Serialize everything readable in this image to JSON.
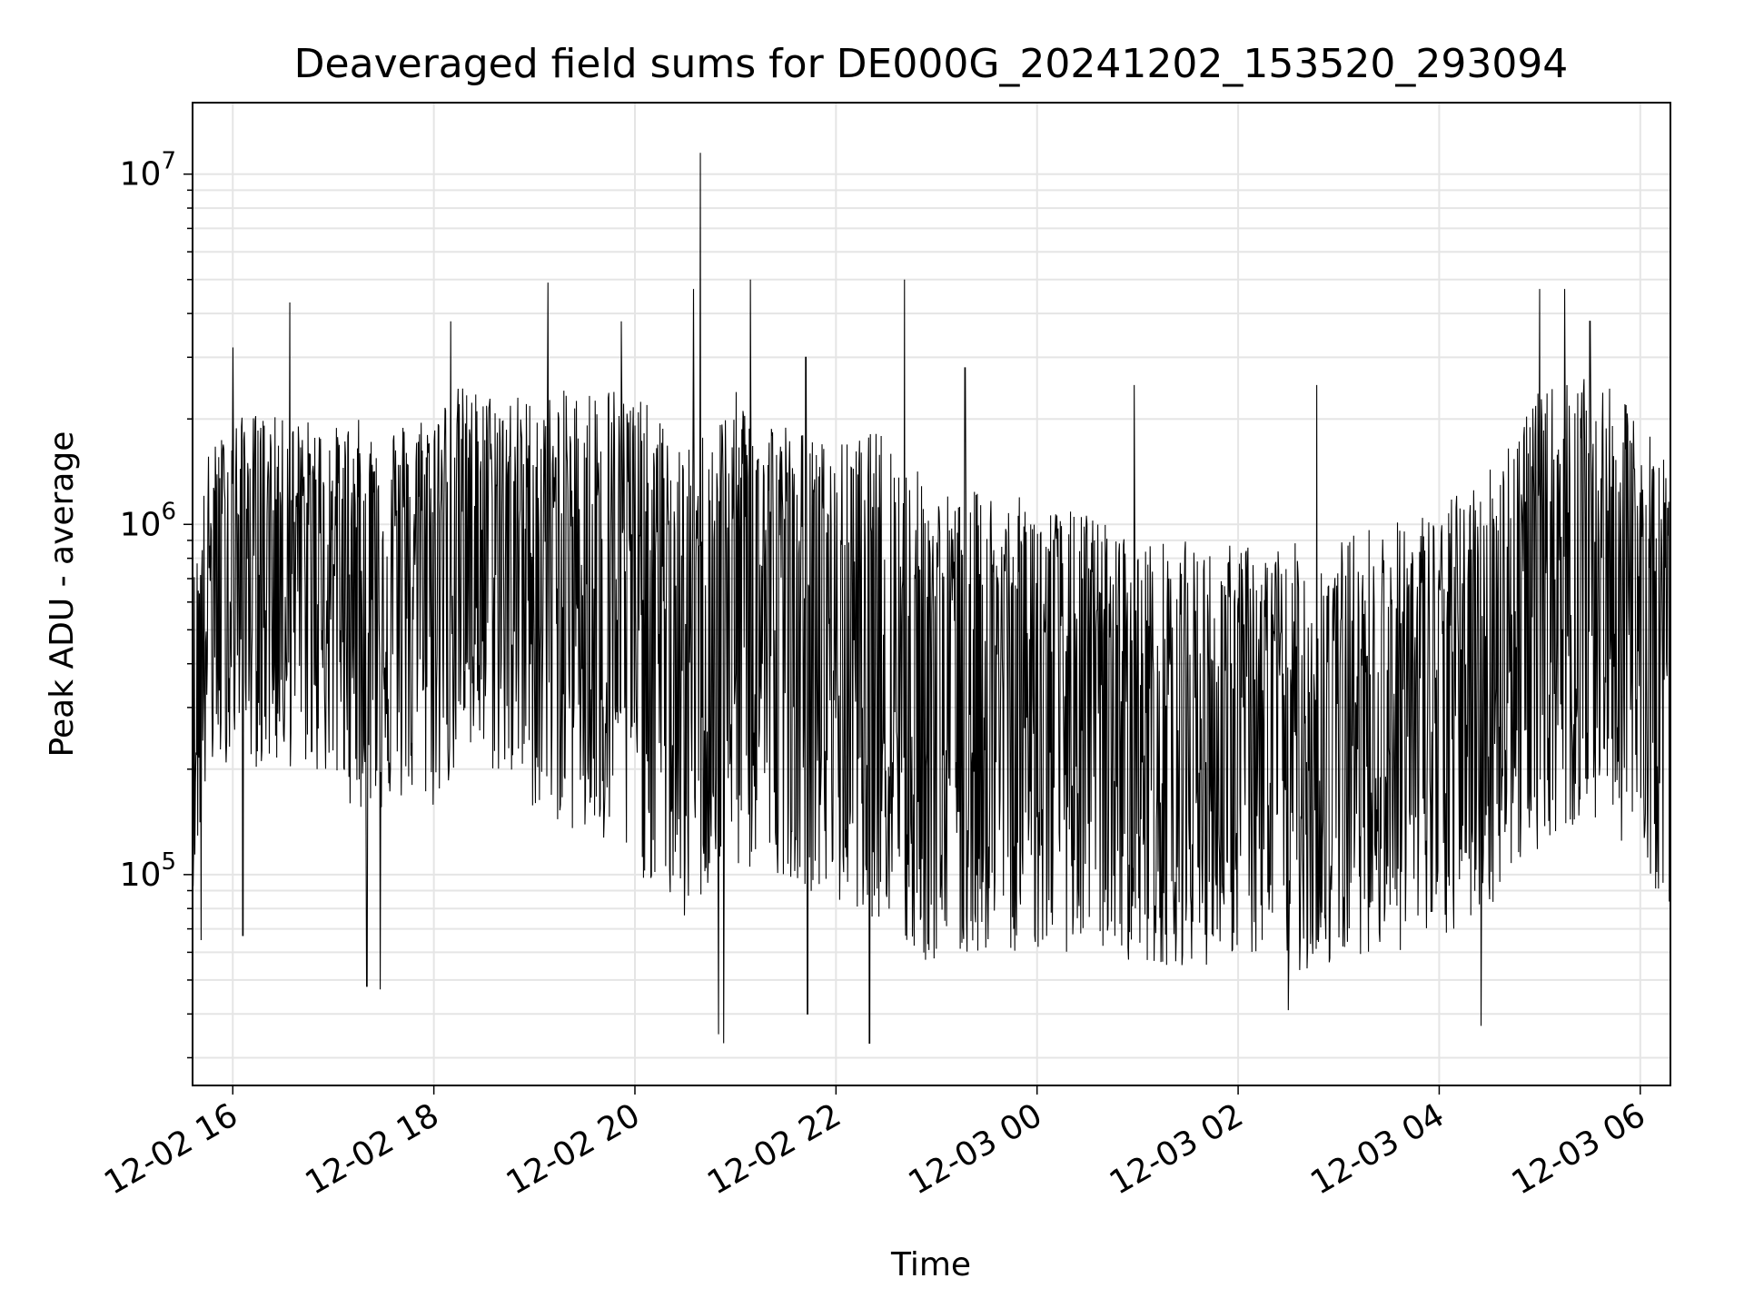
{
  "chart_data": {
    "type": "line",
    "title": "Deaveraged field sums for DE000G_20241202_153520_293094",
    "xlabel": "Time",
    "ylabel": "Peak ADU - average",
    "x_scale": "time",
    "y_scale": "log",
    "xlim": [
      "12-02 15:36",
      "12-03 06:18"
    ],
    "ylim": [
      25000,
      16000000
    ],
    "grid": true,
    "line_color": "#000000",
    "grid_color": "#e5e5e5",
    "x_ticks": [
      "12-02 16",
      "12-02 18",
      "12-02 20",
      "12-02 22",
      "12-03 00",
      "12-03 02",
      "12-03 04",
      "12-03 06"
    ],
    "y_ticks": [
      {
        "value": 100000,
        "base": "10",
        "exp": "5"
      },
      {
        "value": 1000000,
        "base": "10",
        "exp": "6"
      },
      {
        "value": 10000000,
        "base": "10",
        "exp": "7"
      }
    ],
    "series": [
      {
        "x": [
          "12-02 15:36",
          "12-02 15:45",
          "12-02 16:00",
          "12-02 16:15",
          "12-02 16:30",
          "12-02 16:45",
          "12-02 17:00",
          "12-02 17:15",
          "12-02 17:30",
          "12-02 17:45",
          "12-02 18:00",
          "12-02 18:15",
          "12-02 18:30",
          "12-02 18:45",
          "12-02 19:00",
          "12-02 19:15",
          "12-02 19:30",
          "12-02 19:45",
          "12-02 20:00",
          "12-02 20:15",
          "12-02 20:30",
          "12-02 20:45",
          "12-02 21:00",
          "12-02 21:15",
          "12-02 21:30",
          "12-02 21:45",
          "12-02 22:00",
          "12-02 22:15",
          "12-02 22:30",
          "12-02 22:45",
          "12-02 23:00",
          "12-02 23:15",
          "12-02 23:30",
          "12-02 23:45",
          "12-03 00:00",
          "12-03 00:15",
          "12-03 00:30",
          "12-03 00:45",
          "12-03 01:00",
          "12-03 01:15",
          "12-03 01:30",
          "12-03 01:45",
          "12-03 02:00",
          "12-03 02:15",
          "12-03 02:30",
          "12-03 02:45",
          "12-03 03:00",
          "12-03 03:15",
          "12-03 03:30",
          "12-03 03:45",
          "12-03 04:00",
          "12-03 04:15",
          "12-03 04:30",
          "12-03 04:45",
          "12-03 05:00",
          "12-03 05:15",
          "12-03 05:30",
          "12-03 05:45",
          "12-03 06:00",
          "12-03 06:18"
        ],
        "median": [
          250000,
          700000,
          850000,
          950000,
          900000,
          850000,
          800000,
          800000,
          750000,
          750000,
          850000,
          1000000,
          950000,
          900000,
          850000,
          800000,
          750000,
          750000,
          700000,
          600000,
          450000,
          550000,
          650000,
          600000,
          550000,
          500000,
          450000,
          500000,
          500000,
          350000,
          300000,
          300000,
          350000,
          350000,
          350000,
          300000,
          300000,
          300000,
          250000,
          250000,
          250000,
          230000,
          250000,
          250000,
          250000,
          230000,
          250000,
          280000,
          280000,
          300000,
          300000,
          350000,
          400000,
          550000,
          650000,
          700000,
          700000,
          700000,
          600000,
          450000
        ],
        "low": [
          90000,
          180000,
          220000,
          200000,
          200000,
          200000,
          180000,
          150000,
          150000,
          160000,
          150000,
          200000,
          200000,
          180000,
          150000,
          140000,
          120000,
          110000,
          100000,
          90000,
          70000,
          90000,
          100000,
          100000,
          100000,
          90000,
          80000,
          80000,
          70000,
          55000,
          55000,
          55000,
          60000,
          60000,
          60000,
          60000,
          60000,
          60000,
          55000,
          55000,
          55000,
          55000,
          60000,
          55000,
          55000,
          50000,
          55000,
          60000,
          60000,
          60000,
          60000,
          70000,
          80000,
          100000,
          120000,
          130000,
          140000,
          130000,
          110000,
          75000
        ],
        "high": [
          700000,
          1600000,
          2000000,
          2100000,
          2000000,
          2000000,
          1900000,
          2000000,
          2000000,
          2000000,
          2200000,
          2500000,
          2400000,
          2400000,
          2300000,
          2400000,
          2500000,
          2600000,
          2400000,
          2000000,
          1600000,
          2000000,
          2400000,
          2200000,
          2000000,
          1800000,
          1700000,
          1800000,
          1900000,
          1500000,
          1300000,
          1200000,
          1300000,
          1200000,
          1200000,
          1100000,
          1100000,
          1000000,
          900000,
          900000,
          900000,
          850000,
          900000,
          850000,
          900000,
          850000,
          900000,
          1000000,
          1000000,
          1100000,
          1100000,
          1300000,
          1500000,
          2000000,
          2400000,
          2600000,
          2600000,
          2400000,
          2000000,
          1500000
        ]
      }
    ],
    "spikes": [
      {
        "x": "12-02 16:34",
        "y": 4300000
      },
      {
        "x": "12-02 16:00",
        "y": 3200000
      },
      {
        "x": "12-02 18:10",
        "y": 3800000
      },
      {
        "x": "12-02 19:08",
        "y": 4900000
      },
      {
        "x": "12-02 19:52",
        "y": 3800000
      },
      {
        "x": "12-02 20:39",
        "y": 11500000
      },
      {
        "x": "12-02 20:35",
        "y": 4700000
      },
      {
        "x": "12-02 21:09",
        "y": 5000000
      },
      {
        "x": "12-02 21:42",
        "y": 3000000
      },
      {
        "x": "12-02 22:41",
        "y": 5000000
      },
      {
        "x": "12-02 23:17",
        "y": 2800000
      },
      {
        "x": "12-03 00:58",
        "y": 2500000
      },
      {
        "x": "12-03 02:47",
        "y": 2500000
      },
      {
        "x": "12-03 05:00",
        "y": 4700000
      },
      {
        "x": "12-03 05:15",
        "y": 4700000
      },
      {
        "x": "12-03 05:30",
        "y": 3800000
      },
      {
        "x": "12-02 17:20",
        "y": 48000
      },
      {
        "x": "12-02 17:28",
        "y": 47000
      },
      {
        "x": "12-02 20:50",
        "y": 35000
      },
      {
        "x": "12-02 20:53",
        "y": 33000
      },
      {
        "x": "12-02 22:20",
        "y": 33000
      },
      {
        "x": "12-02 21:43",
        "y": 40000
      },
      {
        "x": "12-03 02:30",
        "y": 41000
      },
      {
        "x": "12-03 04:25",
        "y": 37000
      },
      {
        "x": "12-02 15:41",
        "y": 65000
      },
      {
        "x": "12-02 16:06",
        "y": 67000
      }
    ]
  }
}
